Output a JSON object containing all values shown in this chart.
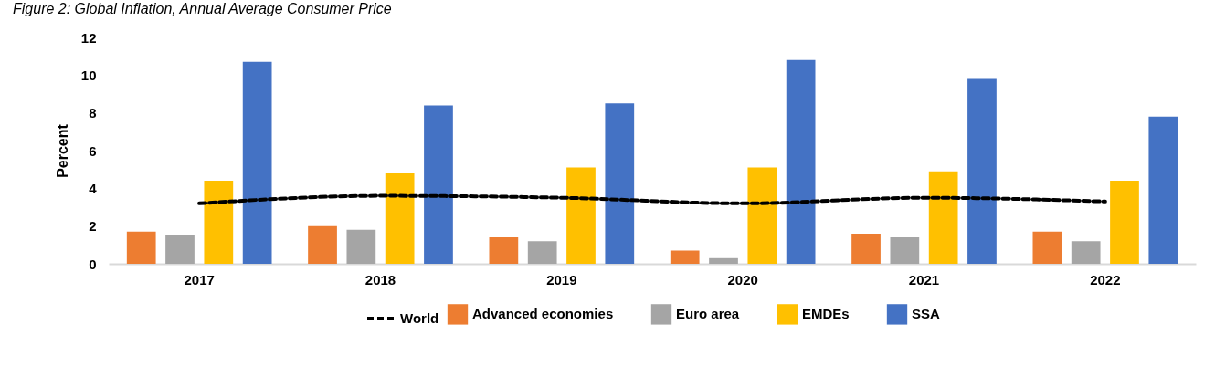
{
  "chart_data": {
    "type": "bar",
    "title": "Figure 2: Global Inflation, Annual Average Consumer Price",
    "ylabel": "Percent",
    "categories": [
      "2017",
      "2018",
      "2019",
      "2020",
      "2021",
      "2022"
    ],
    "series": [
      {
        "name": "Advanced economies",
        "color": "#ed7d31",
        "values": [
          1.7,
          2.0,
          1.4,
          0.7,
          1.6,
          1.7
        ]
      },
      {
        "name": "Euro area",
        "color": "#a5a5a5",
        "values": [
          1.55,
          1.8,
          1.2,
          0.3,
          1.4,
          1.2
        ]
      },
      {
        "name": "EMDEs",
        "color": "#ffc000",
        "values": [
          4.4,
          4.8,
          5.1,
          5.1,
          4.9,
          4.4
        ]
      },
      {
        "name": "SSA",
        "color": "#4472c4",
        "values": [
          10.7,
          8.4,
          8.5,
          10.8,
          9.8,
          7.8
        ]
      },
      {
        "name": "World",
        "type": "line",
        "color": "#000000",
        "line_style": "dashed",
        "values": [
          3.2,
          3.6,
          3.5,
          3.2,
          3.5,
          3.3
        ]
      }
    ],
    "ylim": [
      0,
      12
    ],
    "yticks": [
      0,
      2,
      4,
      6,
      8,
      10,
      12
    ],
    "grid": false,
    "legend": "bottom",
    "marker": "none"
  }
}
